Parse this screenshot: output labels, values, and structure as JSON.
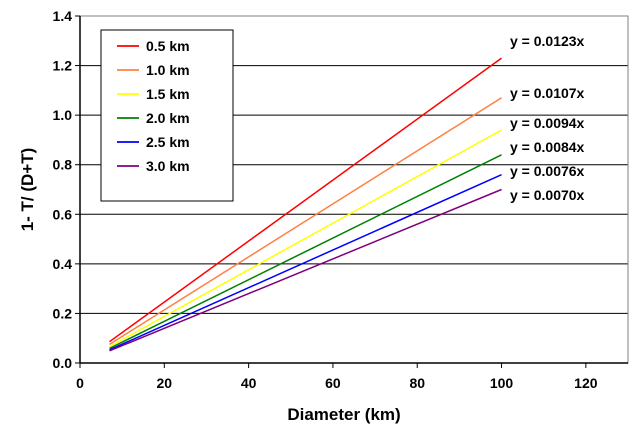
{
  "chart_data": {
    "type": "line",
    "title": "",
    "xlabel": "Diameter (km)",
    "ylabel": "1- T/ (D+T)",
    "xlim": [
      0,
      130
    ],
    "ylim": [
      0,
      1.4
    ],
    "x_ticks": [
      "0",
      "20",
      "40",
      "60",
      "80",
      "100",
      "120"
    ],
    "y_ticks": [
      "0.0",
      "0.2",
      "0.4",
      "0.6",
      "0.8",
      "1.0",
      "1.2",
      "1.4"
    ],
    "grid": "horizontal",
    "legend_position": "top-left",
    "series": [
      {
        "name": "0.5 km",
        "color": "#ff0000",
        "slope": 0.0123,
        "x": [
          7,
          100
        ],
        "y": [
          0.086,
          1.23
        ],
        "trendline": "y = 0.0123x"
      },
      {
        "name": "1.0 km",
        "color": "#ff8040",
        "slope": 0.0107,
        "x": [
          7,
          100
        ],
        "y": [
          0.075,
          1.07
        ],
        "trendline": "y = 0.0107x"
      },
      {
        "name": "1.5 km",
        "color": "#ffff00",
        "slope": 0.0094,
        "x": [
          7,
          100
        ],
        "y": [
          0.066,
          0.94
        ],
        "trendline": "y = 0.0094x"
      },
      {
        "name": "2.0 km",
        "color": "#008000",
        "slope": 0.0084,
        "x": [
          7,
          100
        ],
        "y": [
          0.059,
          0.84
        ],
        "trendline": "y = 0.0084x"
      },
      {
        "name": "2.5 km",
        "color": "#0000ff",
        "slope": 0.0076,
        "x": [
          7,
          100
        ],
        "y": [
          0.053,
          0.76
        ],
        "trendline": "y = 0.0076x"
      },
      {
        "name": "3.0 km",
        "color": "#800080",
        "slope": 0.007,
        "x": [
          7,
          100
        ],
        "y": [
          0.049,
          0.7
        ],
        "trendline": "y = 0.0070x"
      }
    ]
  }
}
